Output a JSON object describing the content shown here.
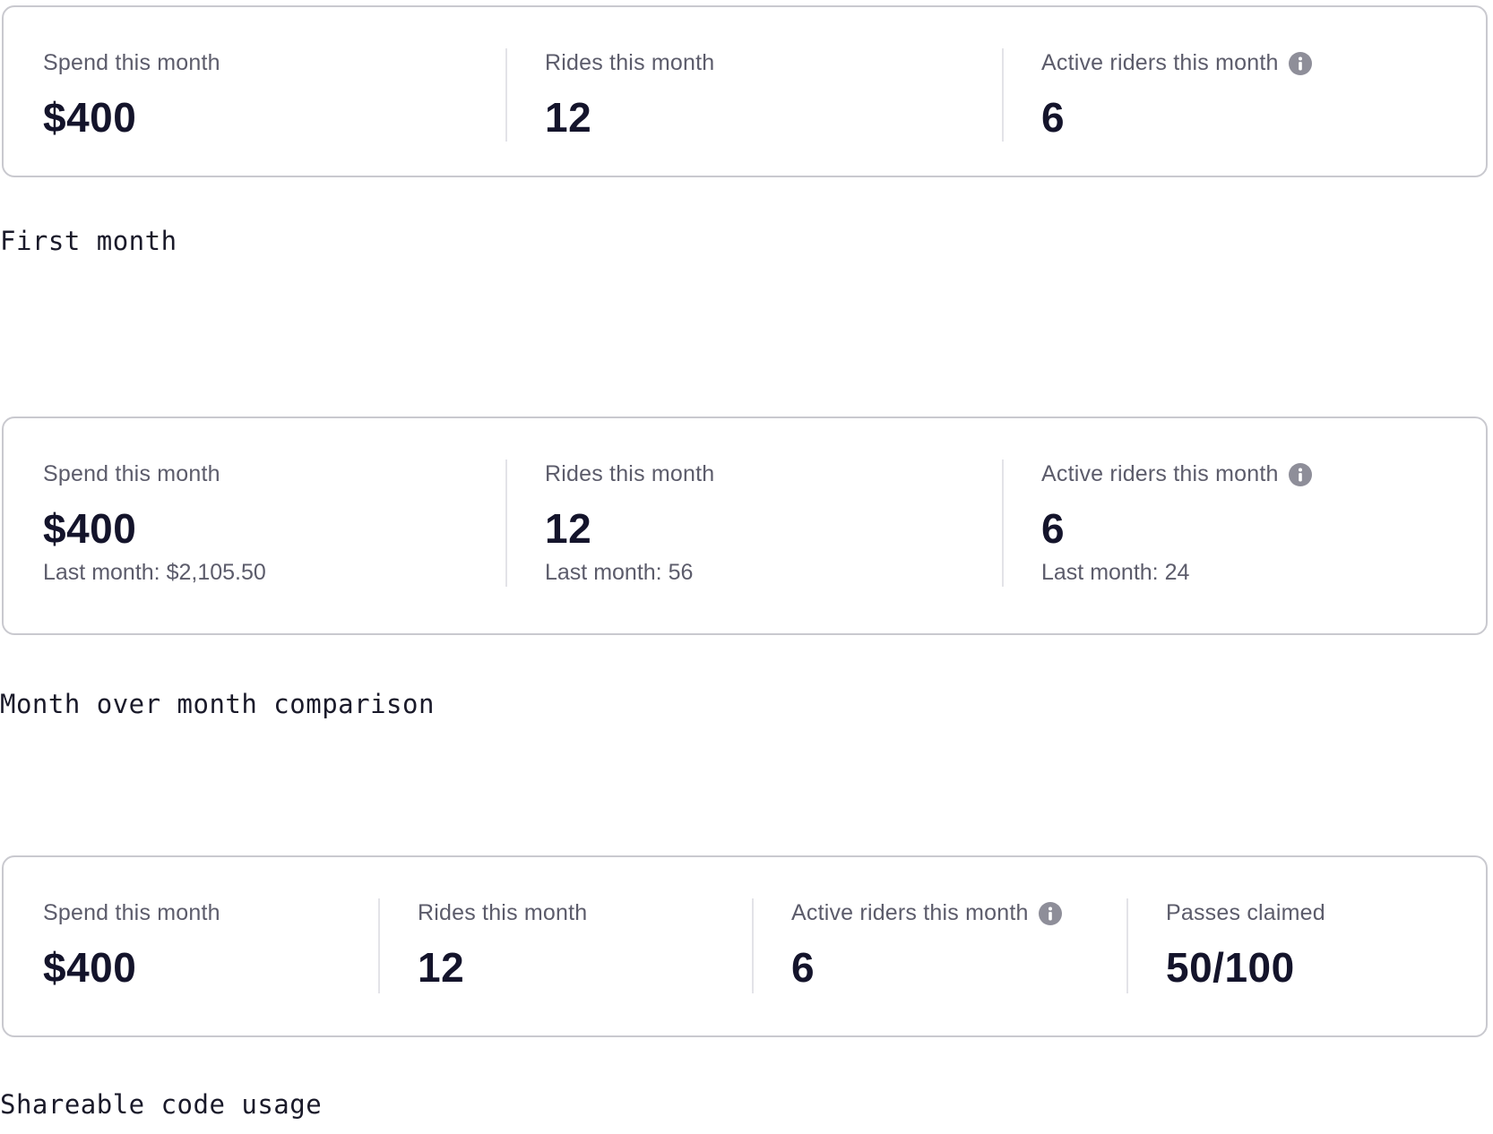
{
  "sections": [
    {
      "caption": "First month",
      "stats": [
        {
          "label": "Spend this month",
          "value": "$400"
        },
        {
          "label": "Rides this month",
          "value": "12"
        },
        {
          "label": "Active riders this month",
          "value": "6",
          "icon": "info-icon"
        }
      ]
    },
    {
      "caption": "Month over month comparison",
      "stats": [
        {
          "label": "Spend this month",
          "value": "$400",
          "sub": "Last month: $2,105.50"
        },
        {
          "label": "Rides this month",
          "value": "12",
          "sub": "Last month: 56"
        },
        {
          "label": "Active riders this month",
          "value": "6",
          "icon": "info-icon",
          "sub": "Last month: 24"
        }
      ]
    },
    {
      "caption": "Shareable code usage",
      "stats": [
        {
          "label": "Spend this month",
          "value": "$400"
        },
        {
          "label": "Rides this month",
          "value": "12"
        },
        {
          "label": "Active riders this month",
          "value": "6",
          "icon": "info-icon"
        },
        {
          "label": "Passes claimed",
          "value": "50/100"
        }
      ]
    }
  ],
  "colors": {
    "text_primary": "#14142b",
    "text_secondary": "#5c5c6b",
    "card_border": "#c9c9cf",
    "divider": "#e3e3e8",
    "info_icon": "#8e8e99"
  }
}
